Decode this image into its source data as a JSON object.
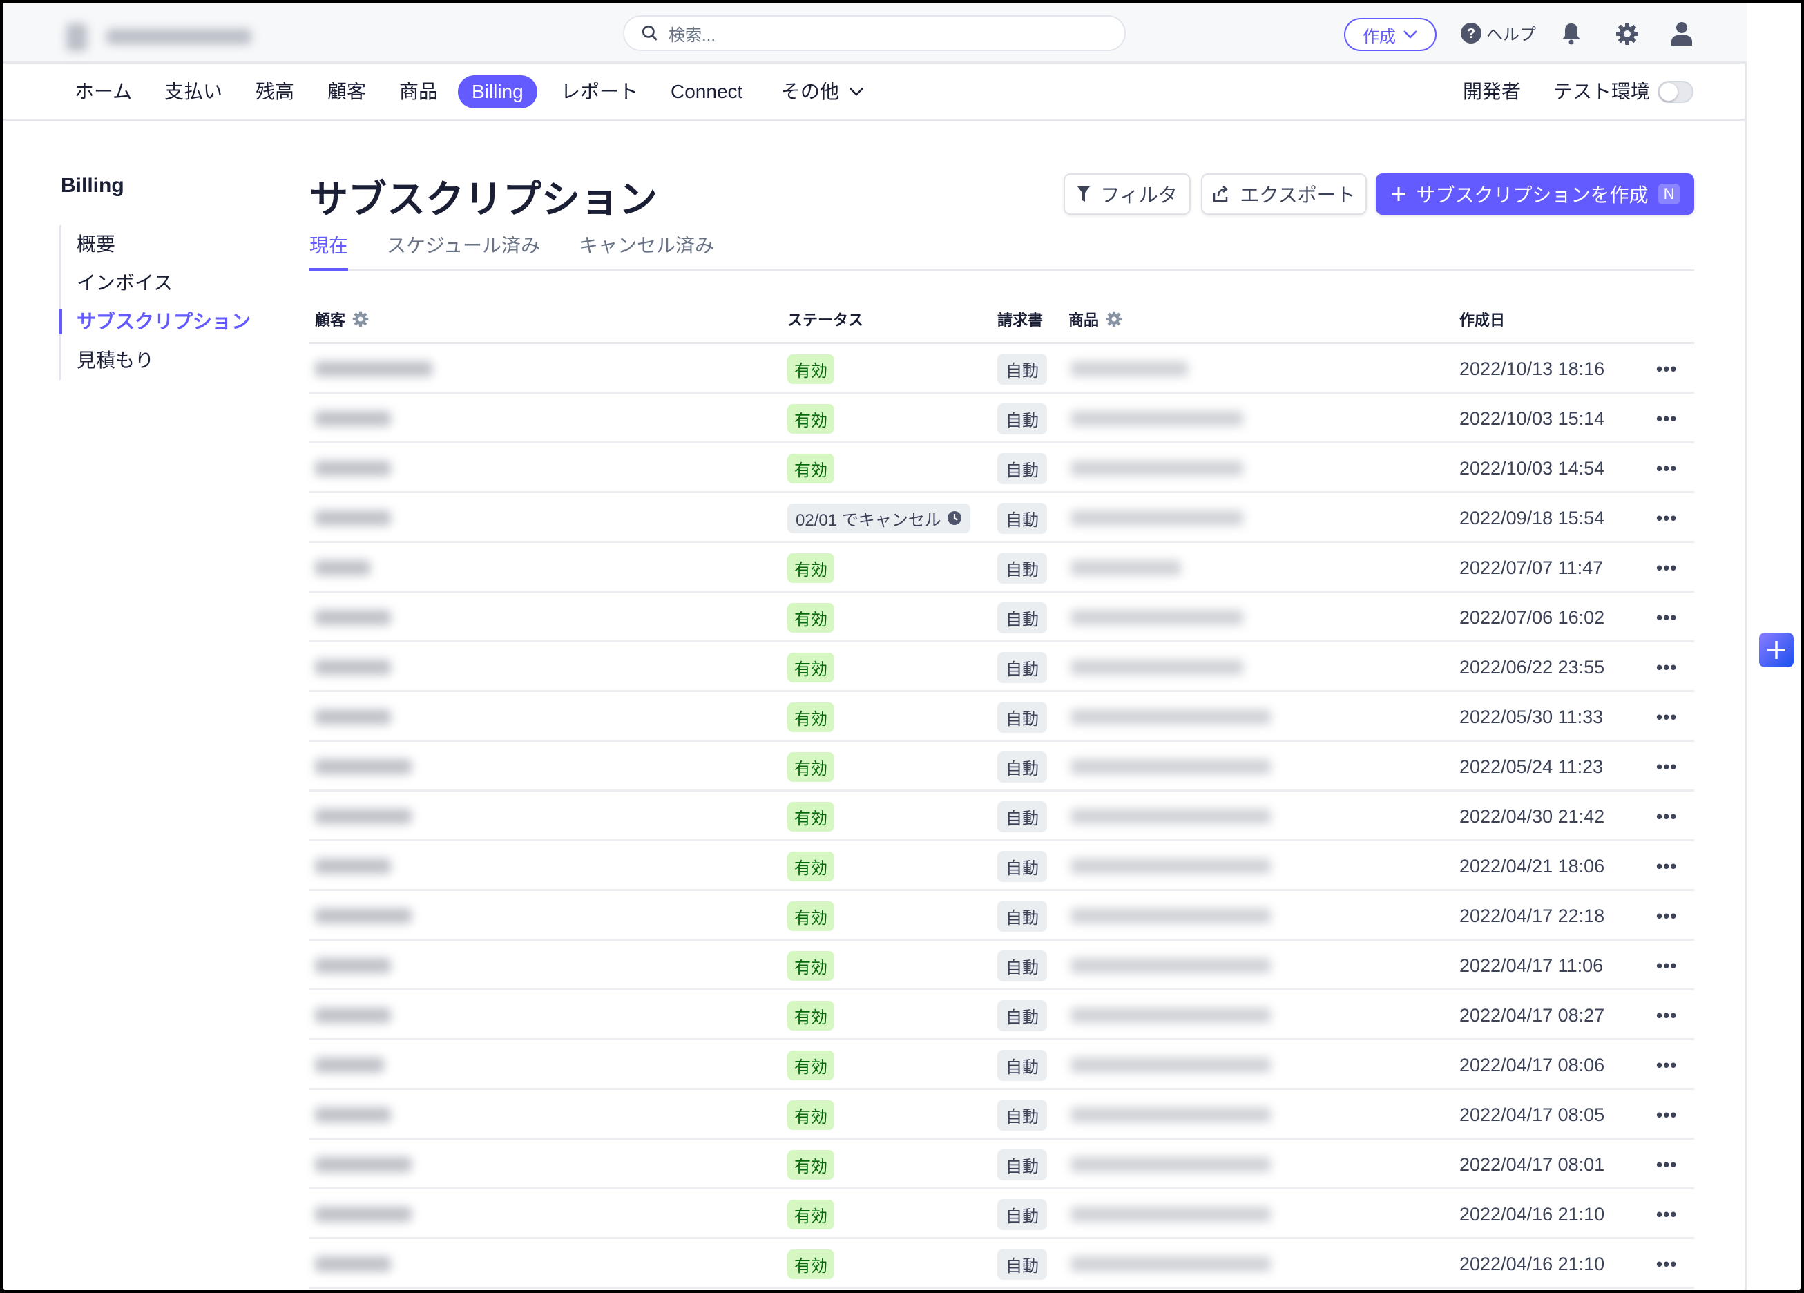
{
  "topbar": {
    "search_placeholder": "検索...",
    "create_label": "作成",
    "help_label": "ヘルプ",
    "icons": [
      "search-icon",
      "chevron-down-icon",
      "help-icon",
      "bell-icon",
      "gear-icon",
      "user-icon"
    ]
  },
  "nav": {
    "items": [
      {
        "label": "ホーム"
      },
      {
        "label": "支払い"
      },
      {
        "label": "残高"
      },
      {
        "label": "顧客"
      },
      {
        "label": "商品"
      },
      {
        "label": "Billing",
        "active": true
      },
      {
        "label": "レポート"
      },
      {
        "label": "Connect"
      },
      {
        "label": "その他"
      }
    ],
    "developer_label": "開発者",
    "test_mode_label": "テスト環境",
    "test_mode_on": false
  },
  "sidebar": {
    "title": "Billing",
    "items": [
      {
        "label": "概要"
      },
      {
        "label": "インボイス"
      },
      {
        "label": "サブスクリプション",
        "active": true
      },
      {
        "label": "見積もり"
      }
    ]
  },
  "main": {
    "title": "サブスクリプション",
    "filter_label": "フィルタ",
    "export_label": "エクスポート",
    "create_label": "サブスクリプションを作成",
    "create_shortcut": "N",
    "tabs": [
      {
        "label": "現在",
        "active": true
      },
      {
        "label": "スケジュール済み"
      },
      {
        "label": "キャンセル済み"
      }
    ],
    "columns": {
      "customer": "顧客",
      "status": "ステータス",
      "invoice": "請求書",
      "product": "商品",
      "created": "作成日"
    },
    "rows": [
      {
        "status": "有効",
        "invoice": "自動",
        "created": "2022/10/13 18:16"
      },
      {
        "status": "有効",
        "invoice": "自動",
        "created": "2022/10/03 15:14"
      },
      {
        "status": "有効",
        "invoice": "自動",
        "created": "2022/10/03 14:54"
      },
      {
        "status": "02/01 でキャンセル",
        "status_type": "cancel",
        "invoice": "自動",
        "created": "2022/09/18 15:54"
      },
      {
        "status": "有効",
        "invoice": "自動",
        "created": "2022/07/07 11:47"
      },
      {
        "status": "有効",
        "invoice": "自動",
        "created": "2022/07/06 16:02"
      },
      {
        "status": "有効",
        "invoice": "自動",
        "created": "2022/06/22 23:55"
      },
      {
        "status": "有効",
        "invoice": "自動",
        "created": "2022/05/30 11:33"
      },
      {
        "status": "有効",
        "invoice": "自動",
        "created": "2022/05/24 11:23"
      },
      {
        "status": "有効",
        "invoice": "自動",
        "created": "2022/04/30 21:42"
      },
      {
        "status": "有効",
        "invoice": "自動",
        "created": "2022/04/21 18:06"
      },
      {
        "status": "有効",
        "invoice": "自動",
        "created": "2022/04/17 22:18"
      },
      {
        "status": "有効",
        "invoice": "自動",
        "created": "2022/04/17 11:06"
      },
      {
        "status": "有効",
        "invoice": "自動",
        "created": "2022/04/17 08:27"
      },
      {
        "status": "有効",
        "invoice": "自動",
        "created": "2022/04/17 08:06"
      },
      {
        "status": "有効",
        "invoice": "自動",
        "created": "2022/04/17 08:05"
      },
      {
        "status": "有効",
        "invoice": "自動",
        "created": "2022/04/17 08:01"
      },
      {
        "status": "有効",
        "invoice": "自動",
        "created": "2022/04/16 21:10"
      },
      {
        "status": "有効",
        "invoice": "自動",
        "created": "2022/04/16 21:10"
      }
    ]
  },
  "colors": {
    "accent": "#635bff",
    "active_badge_bg": "#d7f7c2",
    "active_badge_text": "#05690d",
    "neutral_badge_bg": "#ebeef1"
  }
}
